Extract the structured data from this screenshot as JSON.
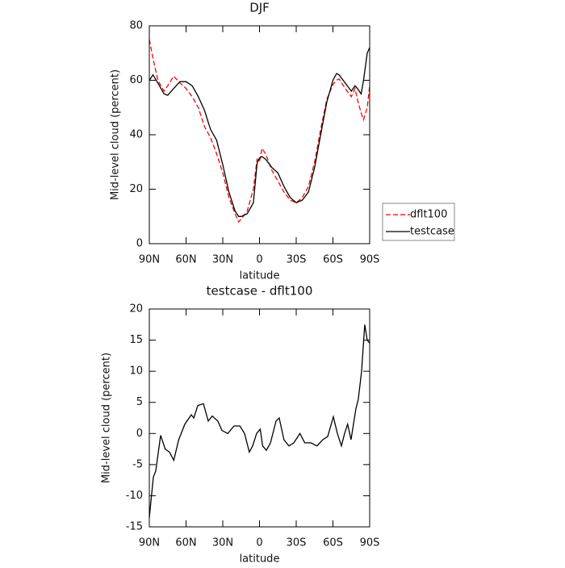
{
  "chart_data": [
    {
      "type": "line",
      "title": "DJF",
      "x_label": "latitude",
      "y_label": "Mid-level cloud (percent)",
      "x": [
        90,
        87,
        83,
        78,
        75,
        70,
        65,
        60,
        55,
        50,
        45,
        40,
        35,
        30,
        25,
        20,
        17,
        15,
        10,
        5,
        2,
        0,
        -2,
        -5,
        -10,
        -15,
        -20,
        -25,
        -30,
        -35,
        -40,
        -45,
        -50,
        -55,
        -60,
        -63,
        -65,
        -70,
        -75,
        -78,
        -80,
        -83,
        -85,
        -88,
        -90
      ],
      "series": [
        {
          "name": "dflt100",
          "color": "#ff0000",
          "dash": true,
          "values": [
            75,
            68,
            60,
            56,
            58,
            61.5,
            59,
            57,
            54,
            50,
            43,
            39,
            33,
            26,
            17,
            11,
            8,
            9,
            12,
            20,
            31,
            30,
            35,
            33,
            27,
            23,
            19,
            16,
            15,
            17,
            21,
            30,
            42,
            53,
            58.5,
            60,
            60.5,
            57,
            54,
            57,
            53,
            48,
            45.5,
            50,
            58
          ]
        },
        {
          "name": "testcase",
          "color": "#000000",
          "dash": false,
          "values": [
            60,
            62,
            59,
            55,
            54.5,
            57,
            59.5,
            59.5,
            58,
            54,
            49,
            42,
            38,
            29,
            19,
            12,
            10,
            10,
            11,
            15,
            29.5,
            31.5,
            32,
            31,
            28,
            26,
            21,
            17,
            15,
            16,
            19,
            28,
            40,
            52,
            60,
            62.5,
            62,
            59,
            56,
            58,
            57,
            55,
            60,
            70,
            72
          ]
        }
      ],
      "xlim": [
        90,
        -90
      ],
      "xticks": [
        {
          "value": 90,
          "label": "90N"
        },
        {
          "value": 60,
          "label": "60N"
        },
        {
          "value": 30,
          "label": "30N"
        },
        0,
        {
          "value": -30,
          "label": "30S"
        },
        {
          "value": -60,
          "label": "60S"
        },
        {
          "value": -90,
          "label": "90S"
        }
      ],
      "ylim": [
        0,
        80
      ],
      "yticks": [
        0,
        20,
        40,
        60,
        80
      ],
      "legend": "right"
    },
    {
      "type": "line",
      "title": "testcase - dflt100",
      "x_label": "latitude",
      "y_label": "Mid-level cloud (percent)",
      "x": [
        90,
        86.7,
        84.7,
        80.8,
        77,
        73.5,
        70,
        66,
        61,
        55.7,
        53.7,
        50.4,
        45.8,
        41.9,
        38.6,
        34,
        30.7,
        26,
        20.8,
        16,
        12.2,
        8.3,
        5.6,
        2.4,
        -0.6,
        -2.6,
        -5.6,
        -9,
        -13.5,
        -16.1,
        -20,
        -24,
        -28,
        -33,
        -37,
        -42,
        -47,
        -51.7,
        -55.7,
        -60.3,
        -63.6,
        -66.9,
        -69.5,
        -72,
        -74.8,
        -78.8,
        -80.7,
        -83.4,
        -86,
        -88,
        -90
      ],
      "series": [
        {
          "color": "#000000",
          "dash": false,
          "values": [
            -13.5,
            -7,
            -6,
            -0.3,
            -2.5,
            -3,
            -4.3,
            -1,
            1.5,
            3,
            2.5,
            4.5,
            4.8,
            2,
            2.8,
            2,
            0.5,
            0,
            1.2,
            1.2,
            0,
            -3,
            -2,
            0,
            0.7,
            -2,
            -2.7,
            -1.5,
            2,
            2.5,
            -1,
            -2,
            -1.5,
            0,
            -1.5,
            -1.5,
            -2,
            -1,
            -0.5,
            2.7,
            0,
            -2,
            0,
            1.5,
            -1,
            4,
            5.5,
            10,
            17.5,
            15,
            14.5
          ]
        }
      ],
      "xlim": [
        90,
        -90
      ],
      "xticks": [
        {
          "value": 90,
          "label": "90N"
        },
        {
          "value": 60,
          "label": "60N"
        },
        {
          "value": 30,
          "label": "30N"
        },
        0,
        {
          "value": -30,
          "label": "30S"
        },
        {
          "value": -60,
          "label": "60S"
        },
        {
          "value": -90,
          "label": "90S"
        }
      ],
      "ylim": [
        -15,
        20
      ],
      "yticks": [
        -15,
        -10,
        -5,
        0,
        5,
        10,
        15,
        20
      ]
    }
  ]
}
